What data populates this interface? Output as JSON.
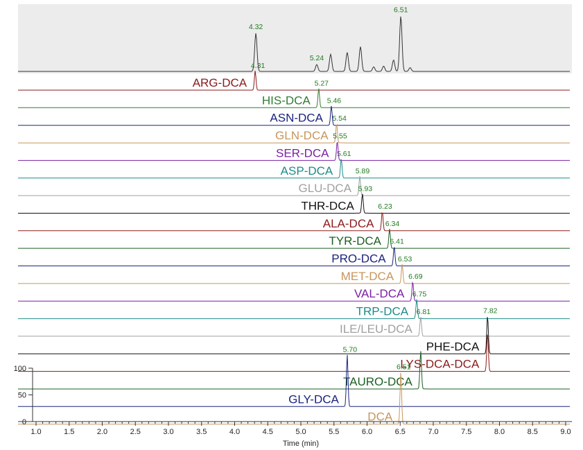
{
  "chart_data": {
    "type": "line",
    "title": "",
    "xlabel": "Time (min)",
    "ylabel": "",
    "xlim": [
      1.0,
      9.0
    ],
    "ylim": [
      0,
      100
    ],
    "x_ticks": [
      "1.0",
      "1.5",
      "2.0",
      "2.5",
      "3.0",
      "3.5",
      "4.0",
      "4.5",
      "5.0",
      "5.5",
      "6.0",
      "6.5",
      "7.0",
      "7.5",
      "8.0",
      "8.5",
      "9.0"
    ],
    "y_ticks": [
      "0",
      "50",
      "100"
    ],
    "tic_trace": {
      "peaks": [
        {
          "rt": 4.32,
          "label": "4.32",
          "height": 1.0
        },
        {
          "rt": 5.24,
          "label": "5.24",
          "height": 0.18
        },
        {
          "rt": 5.45,
          "label": "",
          "height": 0.45
        },
        {
          "rt": 5.7,
          "label": "",
          "height": 0.5
        },
        {
          "rt": 5.9,
          "label": "",
          "height": 0.65
        },
        {
          "rt": 6.1,
          "label": "",
          "height": 0.12
        },
        {
          "rt": 6.25,
          "label": "",
          "height": 0.14
        },
        {
          "rt": 6.4,
          "label": "",
          "height": 0.3
        },
        {
          "rt": 6.51,
          "label": "6.51",
          "height": 1.45
        },
        {
          "rt": 6.65,
          "label": "",
          "height": 0.1
        }
      ]
    },
    "series": [
      {
        "name": "ARG-DCA",
        "rt": 4.31,
        "label": "4.31",
        "color": "#8b1a1a"
      },
      {
        "name": "HIS-DCA",
        "rt": 5.27,
        "label": "5.27",
        "color": "#2e7d32"
      },
      {
        "name": "ASN-DCA",
        "rt": 5.46,
        "label": "5.46",
        "color": "#1a237e"
      },
      {
        "name": "GLN-DCA",
        "rt": 5.54,
        "label": "5.54",
        "color": "#c8955a"
      },
      {
        "name": "SER-DCA",
        "rt": 5.55,
        "label": "5.55",
        "color": "#7b1fa2"
      },
      {
        "name": "ASP-DCA",
        "rt": 5.61,
        "label": "5.61",
        "color": "#1e8a8a"
      },
      {
        "name": "GLU-DCA",
        "rt": 5.89,
        "label": "5.89",
        "color": "#a0a0a0"
      },
      {
        "name": "THR-DCA",
        "rt": 5.93,
        "label": "5.93",
        "color": "#111111"
      },
      {
        "name": "ALA-DCA",
        "rt": 6.23,
        "label": "6.23",
        "color": "#8b1a1a"
      },
      {
        "name": "TYR-DCA",
        "rt": 6.34,
        "label": "6.34",
        "color": "#1b5e20"
      },
      {
        "name": "PRO-DCA",
        "rt": 6.41,
        "label": "6.41",
        "color": "#1a237e"
      },
      {
        "name": "MET-DCA",
        "rt": 6.53,
        "label": "6.53",
        "color": "#c8955a"
      },
      {
        "name": "VAL-DCA",
        "rt": 6.69,
        "label": "6.69",
        "color": "#7b1fa2"
      },
      {
        "name": "TRP-DCA",
        "rt": 6.75,
        "label": "6.75",
        "color": "#1e8a8a"
      },
      {
        "name": "ILE/LEU-DCA",
        "rt": 6.81,
        "label": "6.81",
        "color": "#a0a0a0"
      },
      {
        "name": "PHE-DCA",
        "rt": 7.82,
        "label": "7.82",
        "color": "#111111"
      },
      {
        "name": "LYS-DCA-DCA",
        "rt": 7.82,
        "label": "",
        "color": "#8b1a1a"
      },
      {
        "name": "TAURO-DCA",
        "rt": 6.81,
        "label": "",
        "color": "#1b5e20"
      },
      {
        "name": "GLY-DCA",
        "rt": 5.7,
        "label": "5.70",
        "color": "#1a237e"
      },
      {
        "name": "DCA",
        "rt": 6.51,
        "label": "6.51",
        "color": "#c8955a"
      }
    ]
  }
}
